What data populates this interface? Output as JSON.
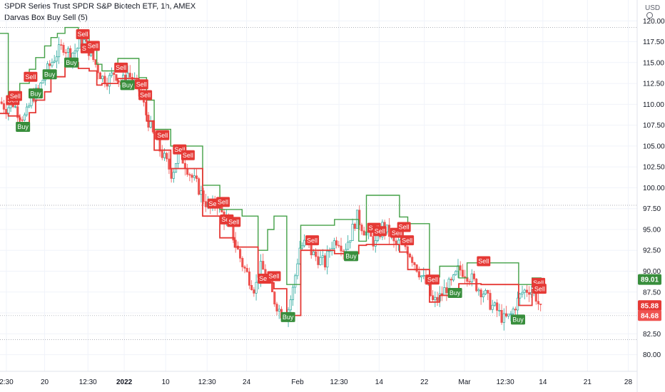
{
  "header": {
    "title": "SPDR Series Trust SPDR S&P Biotech ETF, 1h, AMEX",
    "indicator": "Darvas Box Buy Sell (5)",
    "currency": "USD"
  },
  "chart_data": {
    "type": "candlestick",
    "symbol": "SPDR Series Trust SPDR S&P Biotech ETF",
    "interval": "1h",
    "exchange": "AMEX",
    "indicator": "Darvas Box Buy Sell (5)",
    "ylim": [
      78.0,
      122.5
    ],
    "y_ticks": [
      80.0,
      82.5,
      85.0,
      87.5,
      90.0,
      92.5,
      95.0,
      97.5,
      100.0,
      102.5,
      105.0,
      107.5,
      110.0,
      112.5,
      115.0,
      117.5,
      120.0
    ],
    "x_range": [
      0,
      100
    ],
    "x_ticks": [
      {
        "x": 1.0,
        "label": "2:30"
      },
      {
        "x": 7.0,
        "label": "20"
      },
      {
        "x": 13.8,
        "label": "12:30"
      },
      {
        "x": 19.5,
        "label": "2022"
      },
      {
        "x": 26.0,
        "label": "10"
      },
      {
        "x": 32.5,
        "label": "12:30"
      },
      {
        "x": 38.7,
        "label": "24"
      },
      {
        "x": 46.7,
        "label": "Feb"
      },
      {
        "x": 53.2,
        "label": "12:30"
      },
      {
        "x": 59.5,
        "label": "14"
      },
      {
        "x": 66.6,
        "label": "22"
      },
      {
        "x": 72.9,
        "label": "Mar"
      },
      {
        "x": 79.3,
        "label": "12:30"
      },
      {
        "x": 85.2,
        "label": "14"
      },
      {
        "x": 92.2,
        "label": "21"
      },
      {
        "x": 98.6,
        "label": "28"
      }
    ],
    "close_series": [
      [
        0,
        110.3
      ],
      [
        1,
        109.5
      ],
      [
        2,
        110.2
      ],
      [
        3,
        108.8
      ],
      [
        4,
        108.4
      ],
      [
        5,
        110.8
      ],
      [
        6,
        111.6
      ],
      [
        7,
        113.5
      ],
      [
        8,
        114.9
      ],
      [
        9,
        116.2
      ],
      [
        10,
        117.0
      ],
      [
        11,
        116.0
      ],
      [
        12,
        116.6
      ],
      [
        13,
        117.8
      ],
      [
        14,
        116.4
      ],
      [
        15,
        114.8
      ],
      [
        16,
        113.2
      ],
      [
        17,
        112.9
      ],
      [
        18,
        113.9
      ],
      [
        19,
        112.4
      ],
      [
        20,
        113.8
      ],
      [
        21,
        112.6
      ],
      [
        22,
        111.5
      ],
      [
        23,
        108.6
      ],
      [
        24,
        106.4
      ],
      [
        25,
        104.7
      ],
      [
        26,
        103.2
      ],
      [
        27,
        101.6
      ],
      [
        28,
        104.2
      ],
      [
        29,
        103.0
      ],
      [
        30,
        101.4
      ],
      [
        31,
        100.2
      ],
      [
        32,
        98.6
      ],
      [
        33,
        97.4
      ],
      [
        34,
        98.3
      ],
      [
        35,
        96.6
      ],
      [
        36,
        95.6
      ],
      [
        37,
        93.2
      ],
      [
        38,
        90.9
      ],
      [
        39,
        89.3
      ],
      [
        40,
        87.8
      ],
      [
        41,
        90.6
      ],
      [
        42,
        88.9
      ],
      [
        43,
        86.6
      ],
      [
        44,
        85.1
      ],
      [
        45,
        84.7
      ],
      [
        46,
        87.9
      ],
      [
        47,
        92.8
      ],
      [
        48,
        93.4
      ],
      [
        49,
        92.1
      ],
      [
        50,
        91.5
      ],
      [
        51,
        90.9
      ],
      [
        52,
        93.2
      ],
      [
        53,
        93.9
      ],
      [
        54,
        92.6
      ],
      [
        55,
        94.3
      ],
      [
        56,
        96.6
      ],
      [
        57,
        95.1
      ],
      [
        58,
        94.1
      ],
      [
        59,
        93.2
      ],
      [
        60,
        95.4
      ],
      [
        61,
        94.6
      ],
      [
        62,
        93.0
      ],
      [
        63,
        93.6
      ],
      [
        64,
        92.6
      ],
      [
        65,
        91.1
      ],
      [
        66,
        89.6
      ],
      [
        67,
        88.3
      ],
      [
        68,
        86.2
      ],
      [
        69,
        86.9
      ],
      [
        70,
        88.0
      ],
      [
        71,
        88.6
      ],
      [
        72,
        90.3
      ],
      [
        73,
        89.8
      ],
      [
        74,
        89.1
      ],
      [
        75,
        88.0
      ],
      [
        76,
        87.4
      ],
      [
        77,
        86.0
      ],
      [
        78,
        85.3
      ],
      [
        79,
        84.2
      ],
      [
        80,
        84.5
      ],
      [
        81,
        86.1
      ],
      [
        82,
        87.5
      ],
      [
        83,
        87.9
      ],
      [
        84,
        87.2
      ],
      [
        85,
        85.0
      ]
    ],
    "upper_box": [
      [
        0,
        118.5
      ],
      [
        1.3,
        118.5
      ],
      [
        1.3,
        110.7
      ],
      [
        3.1,
        110.7
      ],
      [
        3.1,
        112.5
      ],
      [
        4.6,
        112.5
      ],
      [
        4.6,
        114.2
      ],
      [
        5.6,
        114.2
      ],
      [
        5.6,
        115.6
      ],
      [
        7.0,
        115.6
      ],
      [
        7.0,
        117.0
      ],
      [
        8.0,
        117.0
      ],
      [
        8.0,
        118.0
      ],
      [
        9.0,
        118.0
      ],
      [
        9.0,
        118.5
      ],
      [
        10.2,
        118.5
      ],
      [
        10.2,
        119.2
      ],
      [
        12.3,
        119.2
      ],
      [
        12.3,
        118.3
      ],
      [
        14.0,
        118.3
      ],
      [
        14.0,
        116.5
      ],
      [
        15.2,
        116.5
      ],
      [
        15.2,
        114.8
      ],
      [
        16.0,
        114.8
      ],
      [
        16.0,
        114.0
      ],
      [
        18.5,
        114.0
      ],
      [
        18.5,
        115.5
      ],
      [
        21.8,
        115.5
      ],
      [
        21.8,
        113.2
      ],
      [
        23.0,
        113.2
      ],
      [
        23.0,
        110.5
      ],
      [
        24.2,
        110.5
      ],
      [
        24.2,
        107.0
      ],
      [
        26.8,
        107.0
      ],
      [
        26.8,
        105.0
      ],
      [
        31.8,
        105.0
      ],
      [
        31.8,
        100.3
      ],
      [
        34.5,
        100.3
      ],
      [
        34.5,
        97.4
      ],
      [
        38.0,
        97.4
      ],
      [
        38.0,
        96.6
      ],
      [
        40.5,
        96.6
      ],
      [
        40.5,
        92.5
      ],
      [
        42.0,
        92.5
      ],
      [
        42.0,
        95.0
      ],
      [
        43.0,
        95.0
      ],
      [
        43.0,
        96.6
      ],
      [
        45.0,
        96.6
      ],
      [
        45.0,
        88.4
      ],
      [
        47.2,
        88.4
      ],
      [
        47.2,
        95.5
      ],
      [
        52.5,
        95.5
      ],
      [
        52.5,
        96.2
      ],
      [
        56.3,
        96.2
      ],
      [
        56.3,
        93.6
      ],
      [
        57.5,
        93.6
      ],
      [
        57.5,
        99.1
      ],
      [
        62.7,
        99.1
      ],
      [
        62.7,
        96.5
      ],
      [
        64.0,
        96.5
      ],
      [
        64.0,
        95.7
      ],
      [
        67.4,
        95.7
      ],
      [
        67.4,
        89.3
      ],
      [
        69.0,
        89.3
      ],
      [
        69.0,
        90.6
      ],
      [
        72.0,
        90.6
      ],
      [
        72.0,
        89.2
      ],
      [
        73.3,
        89.2
      ],
      [
        73.3,
        91.0
      ],
      [
        81.4,
        91.0
      ],
      [
        81.4,
        88.4
      ],
      [
        83.5,
        88.4
      ],
      [
        83.5,
        89.2
      ],
      [
        85.0,
        89.2
      ]
    ],
    "lower_box": [
      [
        0,
        108.9
      ],
      [
        1.3,
        108.9
      ],
      [
        1.3,
        108.6
      ],
      [
        3.1,
        108.6
      ],
      [
        3.1,
        107.8
      ],
      [
        4.6,
        107.8
      ],
      [
        4.6,
        109.0
      ],
      [
        5.6,
        109.0
      ],
      [
        5.6,
        110.5
      ],
      [
        7.0,
        110.5
      ],
      [
        7.0,
        111.5
      ],
      [
        8.0,
        111.5
      ],
      [
        8.0,
        113.3
      ],
      [
        10.2,
        113.3
      ],
      [
        10.2,
        115.0
      ],
      [
        12.3,
        115.0
      ],
      [
        12.3,
        114.3
      ],
      [
        14.0,
        114.3
      ],
      [
        14.0,
        114.0
      ],
      [
        15.2,
        114.0
      ],
      [
        15.2,
        112.3
      ],
      [
        16.0,
        112.3
      ],
      [
        16.0,
        112.5
      ],
      [
        18.5,
        112.5
      ],
      [
        18.5,
        113.1
      ],
      [
        21.8,
        113.1
      ],
      [
        21.8,
        111.0
      ],
      [
        23.0,
        111.0
      ],
      [
        23.0,
        108.0
      ],
      [
        24.2,
        108.0
      ],
      [
        24.2,
        104.5
      ],
      [
        26.8,
        104.5
      ],
      [
        26.8,
        102.3
      ],
      [
        31.8,
        102.3
      ],
      [
        31.8,
        96.6
      ],
      [
        34.5,
        96.6
      ],
      [
        34.5,
        94.0
      ],
      [
        36.8,
        94.0
      ],
      [
        36.8,
        92.9
      ],
      [
        40.5,
        92.9
      ],
      [
        40.5,
        89.3
      ],
      [
        42.0,
        89.3
      ],
      [
        42.0,
        88.6
      ],
      [
        43.0,
        88.6
      ],
      [
        43.0,
        87.9
      ],
      [
        45.0,
        87.9
      ],
      [
        45.0,
        84.7
      ],
      [
        47.2,
        84.7
      ],
      [
        47.2,
        92.5
      ],
      [
        52.5,
        92.5
      ],
      [
        52.5,
        92.1
      ],
      [
        56.3,
        92.1
      ],
      [
        56.3,
        93.1
      ],
      [
        57.5,
        93.1
      ],
      [
        57.5,
        93.2
      ],
      [
        62.7,
        93.2
      ],
      [
        62.7,
        92.3
      ],
      [
        64.0,
        92.3
      ],
      [
        64.0,
        90.2
      ],
      [
        67.4,
        90.2
      ],
      [
        67.4,
        86.3
      ],
      [
        69.0,
        86.3
      ],
      [
        69.0,
        87.1
      ],
      [
        72.0,
        87.1
      ],
      [
        72.0,
        88.5
      ],
      [
        73.3,
        88.5
      ],
      [
        73.3,
        88.5
      ],
      [
        75.5,
        88.5
      ],
      [
        75.5,
        88.4
      ],
      [
        81.4,
        88.4
      ],
      [
        81.4,
        85.9
      ],
      [
        83.5,
        85.9
      ],
      [
        83.5,
        87.8
      ],
      [
        85.0,
        87.8
      ]
    ],
    "signals": [
      {
        "type": "Sell",
        "x": 2.0,
        "y": 110.5
      },
      {
        "type": "Sell",
        "x": 2.4,
        "y": 111.0
      },
      {
        "type": "Buy",
        "x": 3.6,
        "y": 107.3
      },
      {
        "type": "Sell",
        "x": 4.8,
        "y": 113.3
      },
      {
        "type": "Buy",
        "x": 5.6,
        "y": 111.3
      },
      {
        "type": "Buy",
        "x": 7.8,
        "y": 113.6
      },
      {
        "type": "Buy",
        "x": 11.2,
        "y": 115.0
      },
      {
        "type": "Sell",
        "x": 13.0,
        "y": 118.4
      },
      {
        "type": "Sell",
        "x": 13.7,
        "y": 116.7
      },
      {
        "type": "Sell",
        "x": 14.6,
        "y": 117.0
      },
      {
        "type": "Sell",
        "x": 19.0,
        "y": 114.4
      },
      {
        "type": "Buy",
        "x": 20.0,
        "y": 112.3
      },
      {
        "type": "Sell",
        "x": 22.2,
        "y": 112.4
      },
      {
        "type": "Sell",
        "x": 22.8,
        "y": 111.1
      },
      {
        "type": "Sell",
        "x": 25.5,
        "y": 106.3
      },
      {
        "type": "Sell",
        "x": 28.2,
        "y": 104.6
      },
      {
        "type": "Sell",
        "x": 29.5,
        "y": 103.9
      },
      {
        "type": "Sell",
        "x": 33.6,
        "y": 98.1
      },
      {
        "type": "Sell",
        "x": 35.0,
        "y": 98.3
      },
      {
        "type": "Sell",
        "x": 35.6,
        "y": 96.2
      },
      {
        "type": "Sell",
        "x": 36.7,
        "y": 95.9
      },
      {
        "type": "Sell",
        "x": 41.5,
        "y": 89.1
      },
      {
        "type": "Sell",
        "x": 43.0,
        "y": 89.4
      },
      {
        "type": "Buy",
        "x": 45.2,
        "y": 84.5
      },
      {
        "type": "Sell",
        "x": 49.0,
        "y": 93.7
      },
      {
        "type": "Buy",
        "x": 55.1,
        "y": 91.8
      },
      {
        "type": "Sell",
        "x": 58.7,
        "y": 95.2
      },
      {
        "type": "Sell",
        "x": 59.6,
        "y": 94.8
      },
      {
        "type": "Sell",
        "x": 62.3,
        "y": 94.6
      },
      {
        "type": "Sell",
        "x": 63.4,
        "y": 95.3
      },
      {
        "type": "Sell",
        "x": 63.9,
        "y": 93.7
      },
      {
        "type": "Sell",
        "x": 67.9,
        "y": 89.0
      },
      {
        "type": "Buy",
        "x": 71.4,
        "y": 87.4
      },
      {
        "type": "Sell",
        "x": 75.9,
        "y": 91.2
      },
      {
        "type": "Buy",
        "x": 81.3,
        "y": 84.2
      },
      {
        "type": "Sell",
        "x": 84.5,
        "y": 88.6
      },
      {
        "type": "Sell",
        "x": 84.7,
        "y": 87.9
      }
    ],
    "price_badges": [
      {
        "label": "89.01",
        "value": 89.01,
        "color": "#388e3c"
      },
      {
        "label": "85.88",
        "value": 85.88,
        "color": "#e53935"
      },
      {
        "label": "84.68",
        "value": 84.68,
        "color": "#ef5350"
      }
    ],
    "dotted_levels": [
      119.2,
      97.9,
      84.68,
      81.8
    ],
    "colors": {
      "upper_box": "#43a047",
      "lower_box": "#e53935",
      "candle_up": "#26a69a",
      "candle_down": "#ef5350",
      "buy": "#388e3c",
      "sell": "#e53935"
    },
    "grid": true
  }
}
